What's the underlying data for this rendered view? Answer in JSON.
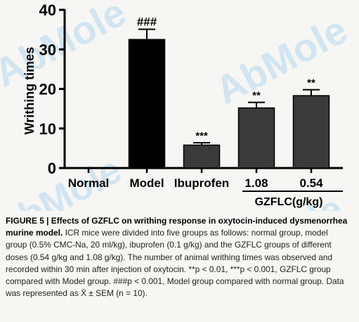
{
  "chart_data": {
    "type": "bar",
    "ylabel": "Writhing times",
    "ylim": [
      0,
      40
    ],
    "yticks": [
      0,
      10,
      20,
      30,
      40
    ],
    "categories": [
      "Normal",
      "Model",
      "Ibuprofen",
      "1.08",
      "0.54"
    ],
    "values": [
      0,
      32.5,
      5.8,
      15.2,
      18.3
    ],
    "errors": [
      0,
      2.6,
      0.6,
      1.4,
      1.5
    ],
    "significance": [
      "",
      "###",
      "***",
      "**",
      "**"
    ],
    "bar_colors": [
      "#000000",
      "#000000",
      "#3a3a3a",
      "#3a3a3a",
      "#3a3a3a"
    ],
    "group_label": "GZFLC(g/kg)",
    "grid": false
  },
  "watermark": {
    "text": "AbMole",
    "colors": [
      "#8fc7e8",
      "#f2d27a"
    ]
  },
  "caption": {
    "lead": "FIGURE 5 | Effects of GZFLC on writhing response in oxytocin-induced dysmenorrhea murine model.",
    "body": " ICR mice were divided into five groups as follows: normal group, model group (0.5% CMC-Na, 20 ml/kg), ibuprofen (0.1 g/kg) and the GZFLC groups of different doses (0.54 g/kg and 1.08 g/kg). The number of animal writhing times was observed and recorded within 30 min after injection of oxytocin. **p < 0.01, ***p < 0.001, GZFLC group compared with Model group. ###p < 0.001, Model group compared with normal group. Data was represented as X̄ ± SEM (n = 10)."
  }
}
